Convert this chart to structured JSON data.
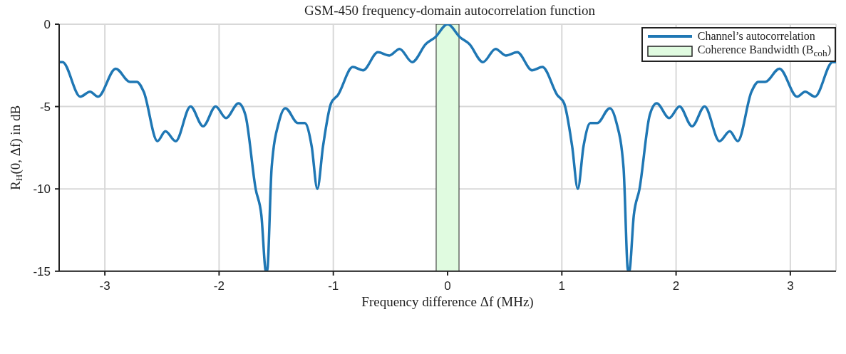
{
  "chart_data": {
    "type": "line",
    "title": "GSM-450 frequency-domain autocorrelation function",
    "xlabel": "Frequency difference Δf (MHz)",
    "ylabel": "R$_{H}$(0, Δf) in dB",
    "x": [
      -3.4,
      -3.37,
      -3.215,
      -3.13,
      -3.06,
      -2.905,
      -2.78,
      -2.72,
      -2.66,
      -2.54,
      -2.47,
      -2.38,
      -2.25,
      -2.14,
      -2.03,
      -1.94,
      -1.83,
      -1.77,
      -1.68,
      -1.63,
      -1.59,
      -1.58,
      -1.54,
      -1.475,
      -1.42,
      -1.31,
      -1.25,
      -1.19,
      -1.14,
      -1.09,
      -1.02,
      -0.96,
      -0.83,
      -0.74,
      -0.61,
      -0.51,
      -0.42,
      -0.31,
      -0.19,
      -0.11,
      0,
      0.11,
      0.19,
      0.31,
      0.42,
      0.51,
      0.61,
      0.74,
      0.83,
      0.96,
      1.02,
      1.09,
      1.14,
      1.19,
      1.25,
      1.31,
      1.42,
      1.475,
      1.54,
      1.58,
      1.59,
      1.63,
      1.68,
      1.77,
      1.83,
      1.94,
      2.03,
      2.14,
      2.25,
      2.38,
      2.47,
      2.54,
      2.66,
      2.72,
      2.78,
      2.905,
      3.06,
      3.13,
      3.215,
      3.37,
      3.4
    ],
    "series": [
      {
        "name": "Channel’s autocorrelation",
        "color": "#1f77b4",
        "values": [
          -2.3,
          -2.3,
          -4.4,
          -4.1,
          -4.4,
          -2.7,
          -3.5,
          -3.5,
          -4.1,
          -7.1,
          -6.5,
          -7.1,
          -5.0,
          -6.2,
          -5.0,
          -5.7,
          -4.8,
          -5.5,
          -10.0,
          -11.6,
          -15,
          -15,
          -8.7,
          -5.9,
          -5.1,
          -6.0,
          -6.0,
          -7.4,
          -10.0,
          -7.4,
          -4.8,
          -4.3,
          -2.6,
          -2.8,
          -1.7,
          -1.9,
          -1.5,
          -2.3,
          -1.2,
          -0.8,
          0,
          -0.8,
          -1.2,
          -2.3,
          -1.5,
          -1.9,
          -1.7,
          -2.8,
          -2.6,
          -4.3,
          -4.8,
          -7.4,
          -10.0,
          -7.4,
          -6.0,
          -6.0,
          -5.1,
          -5.9,
          -8.7,
          -15,
          -15,
          -11.6,
          -10.0,
          -5.5,
          -4.8,
          -5.7,
          -5.0,
          -6.2,
          -5.0,
          -7.1,
          -6.5,
          -7.1,
          -4.1,
          -3.5,
          -3.5,
          -2.7,
          -4.4,
          -4.1,
          -4.4,
          -2.3,
          -2.3
        ]
      }
    ],
    "bands": [
      {
        "axis": "x",
        "from": -0.1,
        "to": 0.1,
        "label": "Coherence Bandwidth (B$_{coh}$)",
        "color": "#e0fbe0"
      }
    ],
    "xlim": [
      -3.4,
      3.4
    ],
    "xticks": [
      -3,
      -2,
      -1,
      0,
      1,
      2,
      3
    ],
    "ylim": [
      -15,
      0
    ],
    "yticks": [
      0,
      -5,
      -10,
      -15
    ],
    "grid": true,
    "legend": "top right",
    "marker": "none",
    "line_style": "solid"
  }
}
